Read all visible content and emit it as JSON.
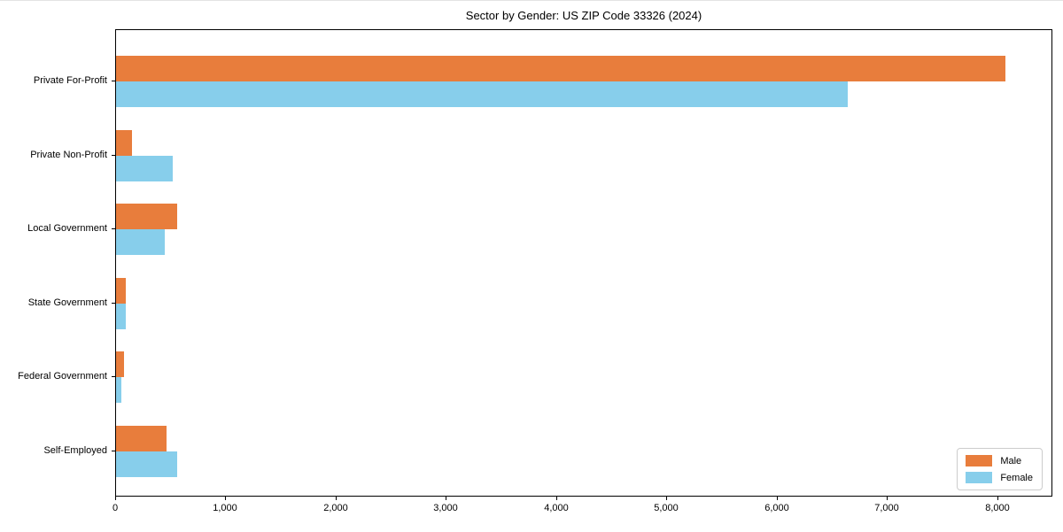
{
  "chart_data": {
    "type": "bar",
    "orientation": "horizontal",
    "title": "Sector by Gender: US ZIP Code 33326 (2024)",
    "categories": [
      "Private For-Profit",
      "Private Non-Profit",
      "Local Government",
      "State Government",
      "Federal Government",
      "Self-Employed"
    ],
    "series": [
      {
        "name": "Male",
        "color": "#e87d3c",
        "values": [
          8070,
          145,
          555,
          85,
          75,
          455
        ]
      },
      {
        "name": "Female",
        "color": "#87ceeb",
        "values": [
          6640,
          515,
          440,
          90,
          50,
          555
        ]
      }
    ],
    "xlabel": "",
    "ylabel": "",
    "xlim": [
      0,
      8500
    ],
    "xticks": [
      0,
      1000,
      2000,
      3000,
      4000,
      5000,
      6000,
      7000,
      8000
    ],
    "xtick_labels": [
      "0",
      "1,000",
      "2,000",
      "3,000",
      "4,000",
      "5,000",
      "6,000",
      "7,000",
      "8,000"
    ],
    "grid": false,
    "legend": {
      "position": "lower right",
      "entries": [
        "Male",
        "Female"
      ]
    },
    "colors": {
      "axis": "#000000",
      "legend_border": "#cccccc",
      "background": "#ffffff"
    }
  }
}
